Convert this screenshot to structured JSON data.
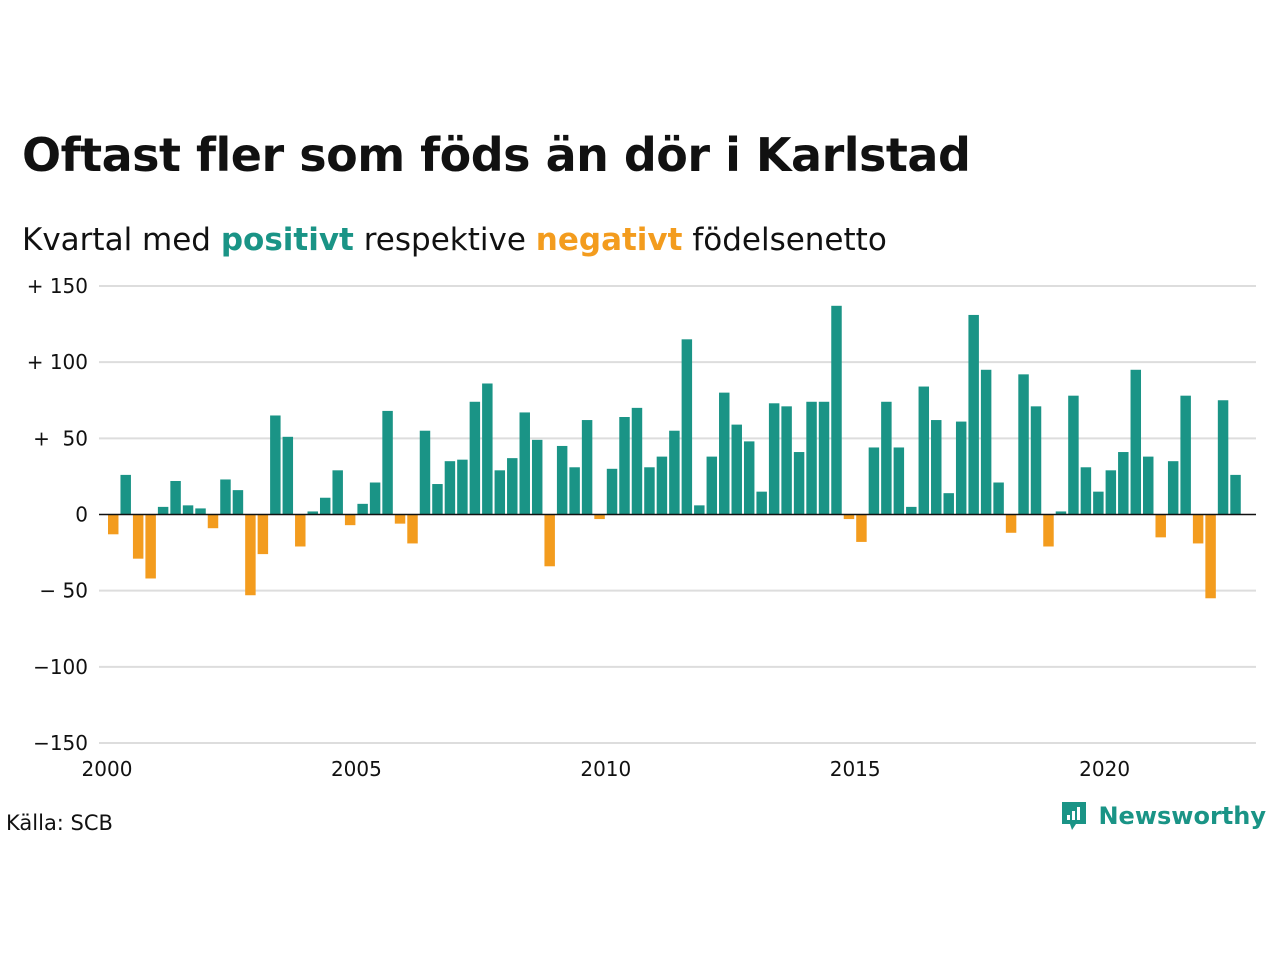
{
  "title": "Oftast fler som föds än dör i Karlstad",
  "subtitle": {
    "prefix": "Kvartal med ",
    "positive": "positivt",
    "middle": " respektive ",
    "negative": "negativt",
    "suffix": " födelsenetto"
  },
  "source": "Källa: SCB",
  "brand": {
    "name": "Newsworthy",
    "icon": "newsworthy-logo-icon"
  },
  "colors": {
    "positive": "#1a9486",
    "negative": "#f39c1e",
    "grid": "#dddddd",
    "zero": "#111111"
  },
  "chart_data": {
    "type": "bar",
    "x_start": 2000,
    "quarters_per_year": 4,
    "ylim": [
      -150,
      150
    ],
    "yticks": [
      {
        "value": 150,
        "label": "+ 150"
      },
      {
        "value": 100,
        "label": "+ 100"
      },
      {
        "value": 50,
        "label": "+  50"
      },
      {
        "value": 0,
        "label": "0"
      },
      {
        "value": -50,
        "label": "− 50"
      },
      {
        "value": -100,
        "label": "−100"
      },
      {
        "value": -150,
        "label": "−150"
      }
    ],
    "xticks": [
      {
        "value": 2000,
        "label": "2000"
      },
      {
        "value": 2005,
        "label": "2005"
      },
      {
        "value": 2010,
        "label": "2010"
      },
      {
        "value": 2015,
        "label": "2015"
      },
      {
        "value": 2020,
        "label": "2020"
      }
    ],
    "values": [
      -13,
      26,
      -29,
      -42,
      5,
      22,
      6,
      4,
      -9,
      23,
      16,
      -53,
      -26,
      65,
      51,
      -21,
      2,
      11,
      29,
      -7,
      7,
      21,
      68,
      -6,
      -19,
      55,
      20,
      35,
      36,
      74,
      86,
      29,
      37,
      67,
      49,
      -34,
      45,
      31,
      62,
      -3,
      30,
      64,
      70,
      31,
      38,
      55,
      115,
      6,
      38,
      80,
      59,
      48,
      15,
      73,
      71,
      41,
      74,
      74,
      137,
      -3,
      -18,
      44,
      74,
      44,
      5,
      84,
      62,
      14,
      61,
      131,
      95,
      21,
      -12,
      92,
      71,
      -21,
      2,
      78,
      31,
      15,
      29,
      41,
      95,
      38,
      -15,
      35,
      78,
      -19,
      -55,
      75,
      26
    ]
  }
}
